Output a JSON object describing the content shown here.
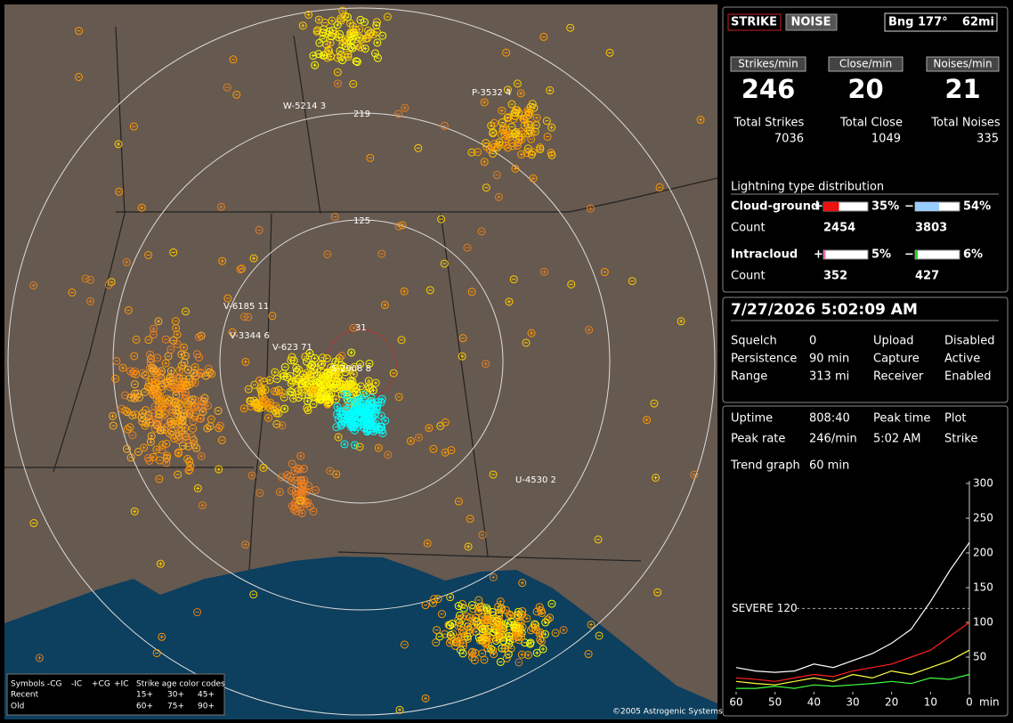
{
  "map": {
    "range_labels": [
      "219",
      "125",
      "31"
    ],
    "station_labels": [
      "W-5214 3",
      "P-3532 4",
      "V-6185 11",
      "V-3344 6",
      "V-623 71",
      "S-2908 8",
      "U-4530 2"
    ],
    "legend": {
      "symbols_title": "Symbols",
      "symbol_columns": [
        "-CG",
        "-IC",
        "+CG",
        "+IC"
      ],
      "age_title": "Strike age color codes",
      "rows": [
        {
          "label": "Recent",
          "ages": [
            "15+",
            "30+",
            "45+"
          ]
        },
        {
          "label": "Old",
          "ages": [
            "60+",
            "75+",
            "90+"
          ]
        }
      ]
    },
    "copyright": "©2005 Astrogenic Systems"
  },
  "status": {
    "buttons": [
      "STRIKE",
      "NOISE"
    ],
    "bearing": "Bng 177°",
    "distance": "62mi"
  },
  "rates": [
    {
      "label": "Strikes/min",
      "value": "246",
      "total_label": "Total Strikes",
      "total": "7036"
    },
    {
      "label": "Close/min",
      "value": "20",
      "total_label": "Total Close",
      "total": "1049"
    },
    {
      "label": "Noises/min",
      "value": "21",
      "total_label": "Total Noises",
      "total": "335"
    }
  ],
  "distribution": {
    "title": "Lightning type distribution",
    "count_label": "Count",
    "rows": [
      {
        "label": "Cloud-ground",
        "positive": {
          "sign": "+",
          "percent": {
            "value": 35,
            "label": "35%"
          },
          "count": "2454"
        },
        "negative": {
          "sign": "−",
          "percent": {
            "value": 54,
            "label": "54%"
          },
          "count": "3803"
        }
      },
      {
        "label": "Intracloud",
        "positive": {
          "sign": "+",
          "percent": {
            "value": 5,
            "label": "5%"
          },
          "count": "352"
        },
        "negative": {
          "sign": "−",
          "percent": {
            "value": 6,
            "label": "6%"
          },
          "count": "427"
        }
      }
    ]
  },
  "clock": "7/27/2026 5:02:09 AM",
  "settings": [
    [
      "Squelch",
      "0",
      "Upload",
      "Disabled"
    ],
    [
      "Persistence",
      "90 min",
      "Capture",
      "Active"
    ],
    [
      "Range",
      "313 mi",
      "Receiver",
      "Enabled"
    ]
  ],
  "stats": [
    [
      "Uptime",
      "808:40",
      "Peak time",
      "Plot"
    ],
    [
      "Peak rate",
      "246/min",
      "5:02 AM",
      "Strike"
    ]
  ],
  "trend": {
    "type": "line",
    "title": "Trend graph",
    "span": "60 min",
    "x": [
      60,
      55,
      50,
      45,
      40,
      35,
      30,
      25,
      20,
      15,
      10,
      5,
      0
    ],
    "xlim": [
      60,
      0
    ],
    "xticks": [
      60,
      50,
      40,
      30,
      20,
      10,
      0
    ],
    "x_unit": "min",
    "ylim": [
      0,
      300
    ],
    "yticks": [
      50,
      100,
      150,
      200,
      250,
      300
    ],
    "threshold": {
      "value": 120,
      "label": "SEVERE 120"
    },
    "series": [
      {
        "color": "#ffffff",
        "values": [
          35,
          30,
          28,
          30,
          40,
          35,
          45,
          55,
          70,
          90,
          130,
          175,
          215
        ]
      },
      {
        "color": "#ff2020",
        "values": [
          20,
          18,
          15,
          20,
          25,
          22,
          30,
          35,
          40,
          50,
          60,
          80,
          100
        ]
      },
      {
        "color": "#ffff40",
        "values": [
          15,
          12,
          10,
          15,
          20,
          15,
          25,
          20,
          30,
          25,
          35,
          45,
          60
        ]
      },
      {
        "color": "#40ff40",
        "values": [
          5,
          5,
          8,
          5,
          10,
          8,
          10,
          12,
          15,
          12,
          20,
          18,
          25
        ]
      }
    ]
  }
}
